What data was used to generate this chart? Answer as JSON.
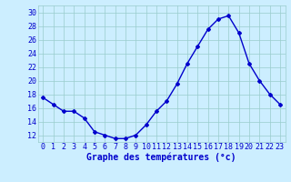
{
  "hours": [
    0,
    1,
    2,
    3,
    4,
    5,
    6,
    7,
    8,
    9,
    10,
    11,
    12,
    13,
    14,
    15,
    16,
    17,
    18,
    19,
    20,
    21,
    22,
    23
  ],
  "temperatures": [
    17.5,
    16.5,
    15.5,
    15.5,
    14.5,
    12.5,
    12.0,
    11.5,
    11.5,
    12.0,
    13.5,
    15.5,
    17.0,
    19.5,
    22.5,
    25.0,
    27.5,
    29.0,
    29.5,
    27.0,
    22.5,
    20.0,
    18.0,
    16.5
  ],
  "line_color": "#0000cc",
  "marker": "D",
  "markersize": 2,
  "linewidth": 1.0,
  "bg_color": "#cceeff",
  "grid_color": "#99cccc",
  "xlabel": "Graphe des températures (°c)",
  "xlabel_color": "#0000cc",
  "xlabel_fontsize": 7,
  "tick_color": "#0000cc",
  "tick_fontsize": 6,
  "ylim": [
    11,
    31
  ],
  "yticks": [
    12,
    14,
    16,
    18,
    20,
    22,
    24,
    26,
    28,
    30
  ],
  "xlim": [
    -0.5,
    23.5
  ],
  "ylabel_fontsize": 6
}
